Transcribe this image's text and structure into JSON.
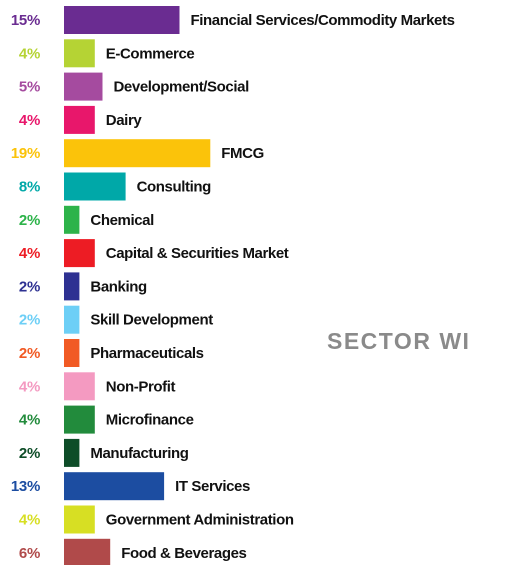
{
  "chart_data": {
    "type": "bar",
    "side_title": "SECTOR WI",
    "categories": [
      "Financial Services/Commodity Markets",
      "E-Commerce",
      "Development/Social",
      "Dairy",
      "FMCG",
      "Consulting",
      "Chemical",
      "Capital & Securities Market",
      "Banking",
      "Skill Development",
      "Pharmaceuticals",
      "Non-Profit",
      "Microfinance",
      "Manufacturing",
      "IT Services",
      "Government Administration",
      "Food & Beverages"
    ],
    "values": [
      15,
      4,
      5,
      4,
      19,
      8,
      2,
      4,
      2,
      2,
      2,
      4,
      4,
      2,
      13,
      4,
      6
    ],
    "value_labels": [
      "15%",
      "4%",
      "5%",
      "4%",
      "19%",
      "8%",
      "2%",
      "4%",
      "2%",
      "2%",
      "2%",
      "4%",
      "4%",
      "2%",
      "13%",
      "4%",
      "6%"
    ],
    "colors": [
      "#6a2c91",
      "#b5d334",
      "#a54b9f",
      "#e8176b",
      "#fbc30a",
      "#00a8a8",
      "#2db34a",
      "#ed1c24",
      "#2e3192",
      "#6dcff6",
      "#f15a24",
      "#f49ac1",
      "#228b3c",
      "#0e4d28",
      "#1c4da1",
      "#d7df23",
      "#b04a4a"
    ]
  }
}
